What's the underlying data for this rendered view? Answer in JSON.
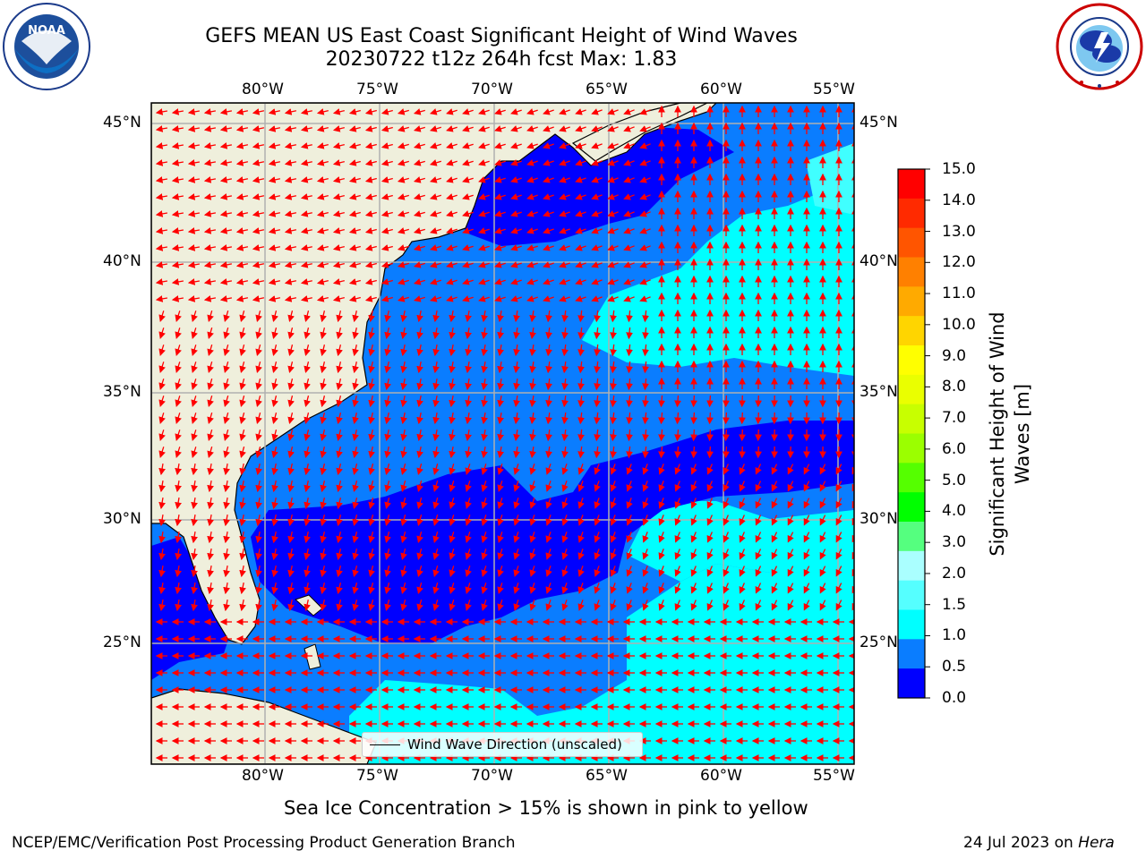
{
  "header": {
    "title_line1": "GEFS MEAN US East Coast Significant Height of Wind Waves",
    "title_line2": "20230722 t12z 264h fcst   Max: 1.83"
  },
  "logos": {
    "left": {
      "text": "NOAA",
      "ring_text": "NATIONAL OCEANIC AND ATMOSPHERIC ADMINISTRATION · U.S. DEPARTMENT OF COMMERCE"
    },
    "right": {
      "ring_text": "NATIONAL WEATHER SERVICE"
    }
  },
  "map": {
    "lon_ticks": [
      "80°W",
      "75°W",
      "70°W",
      "65°W",
      "60°W",
      "55°W"
    ],
    "lat_ticks": [
      "45°N",
      "40°N",
      "35°N",
      "30°N",
      "25°N"
    ],
    "legend_label": "Wind Wave Direction (unscaled)",
    "extent": {
      "lon_min": -85,
      "lon_max": -54.3,
      "lat_min": 20.5,
      "lat_max": 45.8
    },
    "colors": {
      "ocean_0_0p5": "#0000ff",
      "ocean_0p5_1": "#0a7dff",
      "ocean_1_1p5": "#00ffff",
      "ocean_1p5_2": "#40ffff",
      "land": "#efefdc",
      "arrow": "#ff0000",
      "grid": "#b0b0b0"
    }
  },
  "colorbar": {
    "label": "Significant Height of Wind Waves [m]",
    "ticks": [
      "15.0",
      "14.0",
      "13.0",
      "12.0",
      "11.0",
      "10.0",
      "9.0",
      "8.0",
      "7.0",
      "6.0",
      "5.0",
      "4.0",
      "3.0",
      "2.0",
      "1.5",
      "1.0",
      "0.5",
      "0.0"
    ],
    "colors": [
      "#ff0000",
      "#ff2a00",
      "#ff5500",
      "#ff8000",
      "#ffaa00",
      "#ffd500",
      "#ffff00",
      "#eaff00",
      "#c8ff00",
      "#9bff00",
      "#55ff00",
      "#00ff00",
      "#55ff7f",
      "#aaffff",
      "#55ffff",
      "#00ffff",
      "#0a7dff",
      "#0000ff"
    ]
  },
  "footer": {
    "sea_ice_note": "Sea Ice Concentration > 15% is shown in pink to yellow",
    "credit": "NCEP/EMC/Verification Post Processing Product Generation Branch",
    "date_text": "24 Jul 2023 on ",
    "host": "Hera"
  }
}
